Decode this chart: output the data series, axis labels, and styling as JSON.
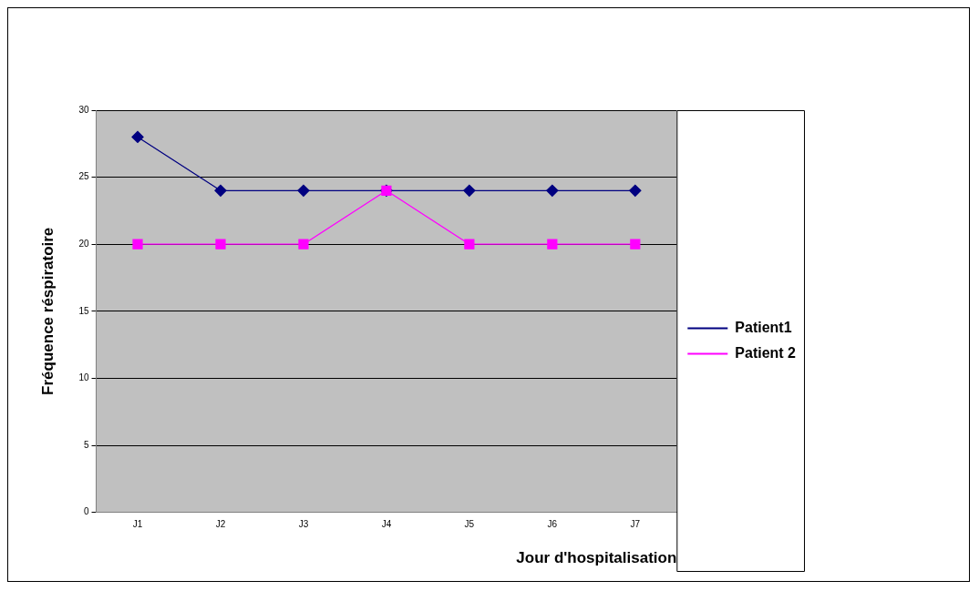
{
  "chart_data": {
    "type": "line",
    "xlabel": "Jour d'hospitalisation",
    "ylabel": "Fréquence réspiratoire",
    "categories": [
      "J1",
      "J2",
      "J3",
      "J4",
      "J5",
      "J6",
      "J7"
    ],
    "series": [
      {
        "name": "Patient1",
        "color": "#000080",
        "marker": "diamond",
        "values": [
          28,
          24,
          24,
          24,
          24,
          24,
          24
        ]
      },
      {
        "name": "Patient 2",
        "color": "#ff00ff",
        "marker": "square",
        "values": [
          20,
          20,
          20,
          24,
          20,
          20,
          20
        ]
      }
    ],
    "ylim": [
      0,
      30
    ],
    "yticks": [
      0,
      5,
      10,
      15,
      20,
      25,
      30
    ],
    "grid": "y",
    "legend": "right",
    "line_style": "solid"
  }
}
